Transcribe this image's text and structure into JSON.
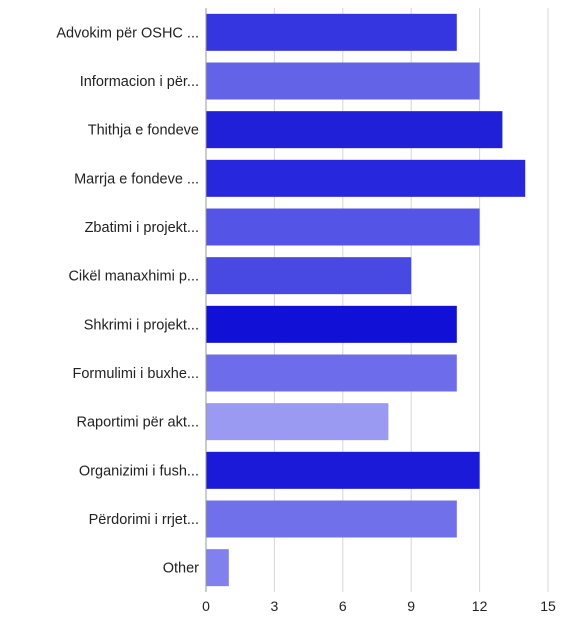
{
  "chart_data": {
    "type": "bar",
    "orientation": "horizontal",
    "title": "",
    "xlabel": "",
    "ylabel": "",
    "xlim": [
      0,
      15
    ],
    "ticks": [
      0,
      3,
      6,
      9,
      12,
      15
    ],
    "grid": true,
    "legend": "none",
    "categories": [
      "Advokim për OSHC ...",
      "Informacion i për...",
      "Thithja e fondeve",
      "Marrja e fondeve ...",
      "Zbatimi i projekt...",
      "Cikël manaxhimi p...",
      "Shkrimi i projekt...",
      "Formulimi i buxhe...",
      "Raportimi për akt...",
      "Organizimi i fush...",
      "Përdorimi i rrjet...",
      "Other"
    ],
    "values": [
      11,
      12,
      13,
      14,
      12,
      9,
      11,
      11,
      8,
      12,
      11,
      1
    ],
    "colors": [
      "#3636e0",
      "#6363e8",
      "#2020d8",
      "#2727dd",
      "#5454e6",
      "#4848e2",
      "#1010d6",
      "#6d6deb",
      "#9a9af3",
      "#1a1ad8",
      "#7070ea",
      "#8080ee"
    ]
  }
}
